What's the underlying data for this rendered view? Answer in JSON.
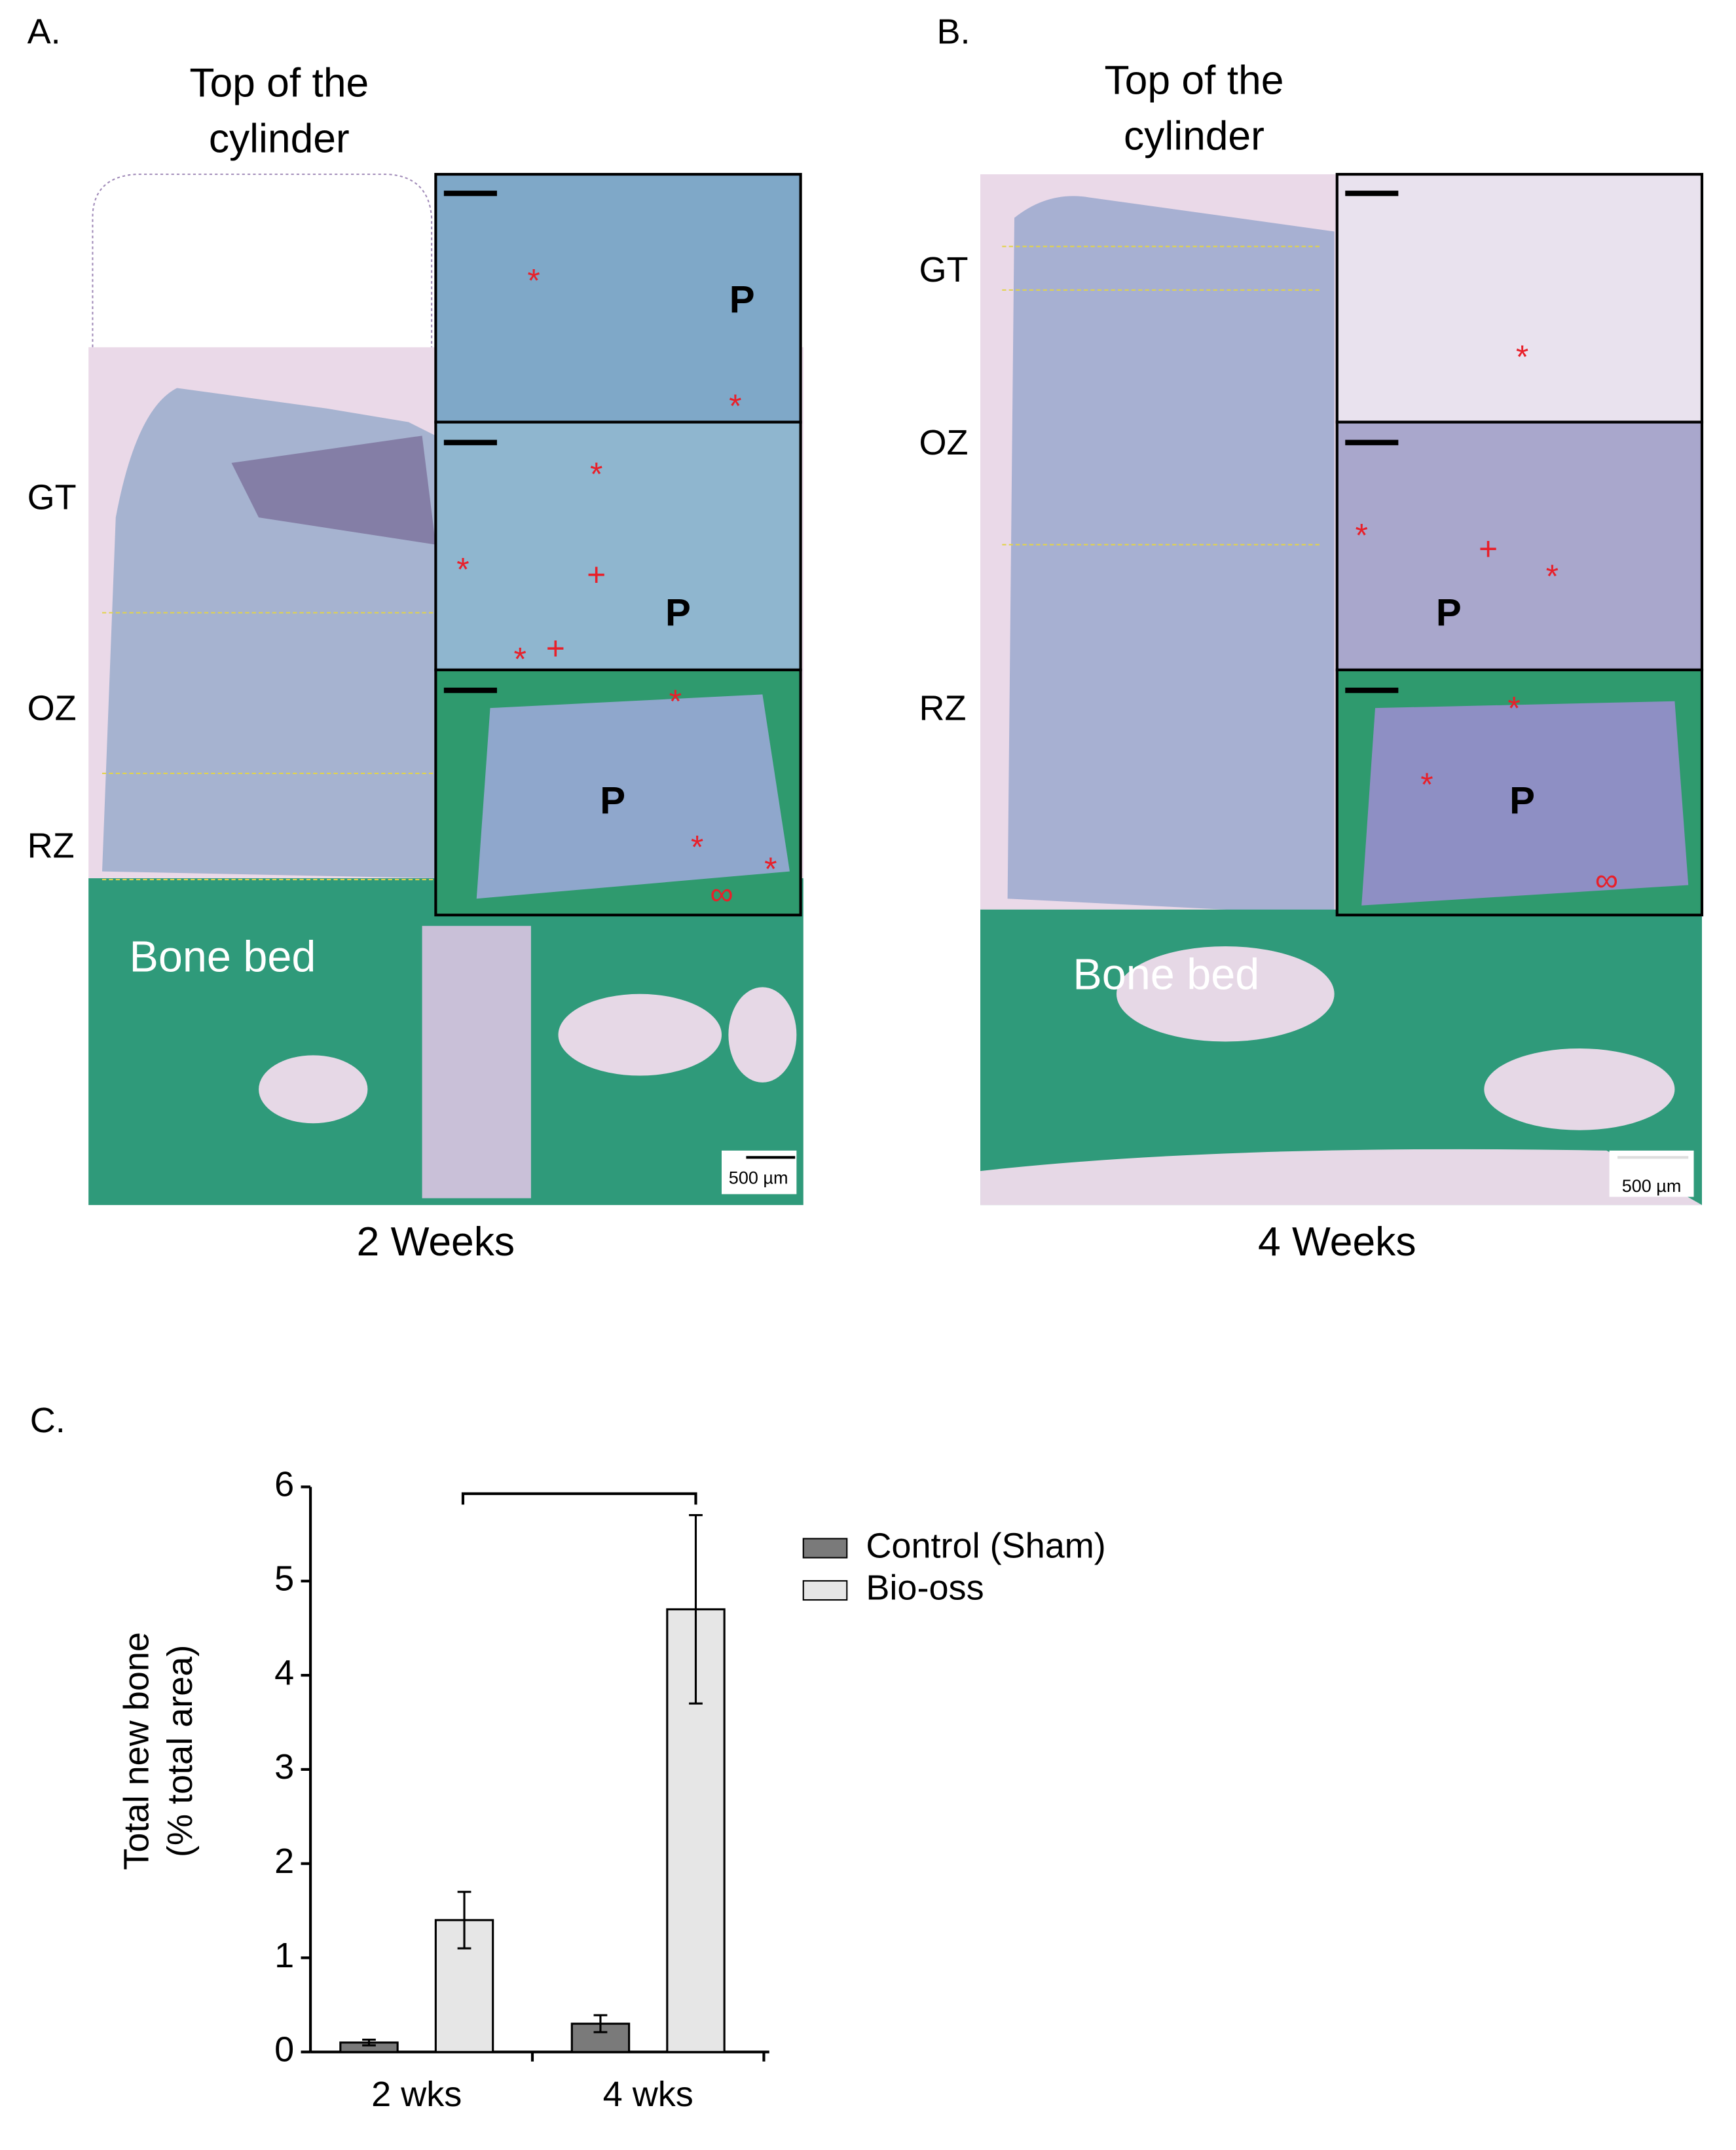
{
  "panel_a": {
    "label": "A.",
    "top_label": [
      "Top of the",
      "cylinder"
    ],
    "zones": [
      "GT",
      "OZ",
      "RZ"
    ],
    "bone_bed": "Bone bed",
    "scale_bar": "500 µm",
    "caption": "2 Weeks",
    "insets": [
      {
        "markers": [
          "*",
          "*",
          "P"
        ]
      },
      {
        "markers": [
          "*",
          "*",
          "+",
          "P",
          "*",
          "+"
        ]
      },
      {
        "markers": [
          "*",
          "P",
          "*",
          "*",
          "∞"
        ]
      }
    ]
  },
  "panel_b": {
    "label": "B.",
    "top_label": [
      "Top of the",
      "cylinder"
    ],
    "zones": [
      "GT",
      "OZ",
      "RZ"
    ],
    "bone_bed": "Bone bed",
    "scale_bar": "500 µm",
    "caption": "4 Weeks",
    "insets": [
      {
        "markers": [
          "*"
        ]
      },
      {
        "markers": [
          "*",
          "+",
          "*",
          "P"
        ]
      },
      {
        "markers": [
          "*",
          "*",
          "P",
          "∞"
        ]
      }
    ]
  },
  "chart_data": {
    "type": "bar",
    "panel_label": "C.",
    "y_label": [
      "Total new bone",
      "(% total area)"
    ],
    "categories": [
      "2 wks",
      "4 wks"
    ],
    "series": [
      {
        "name": "Control (Sham)",
        "color": "#7a7a7a",
        "values": [
          0.1,
          0.3
        ],
        "errors": [
          0.03,
          0.09
        ]
      },
      {
        "name": "Bio-oss",
        "color": "#e6e6e6",
        "values": [
          1.4,
          4.7
        ],
        "errors": [
          0.3,
          1.0
        ]
      }
    ],
    "ylim": [
      0,
      6
    ],
    "yticks": [
      0,
      1,
      2,
      3,
      4,
      5,
      6
    ]
  }
}
